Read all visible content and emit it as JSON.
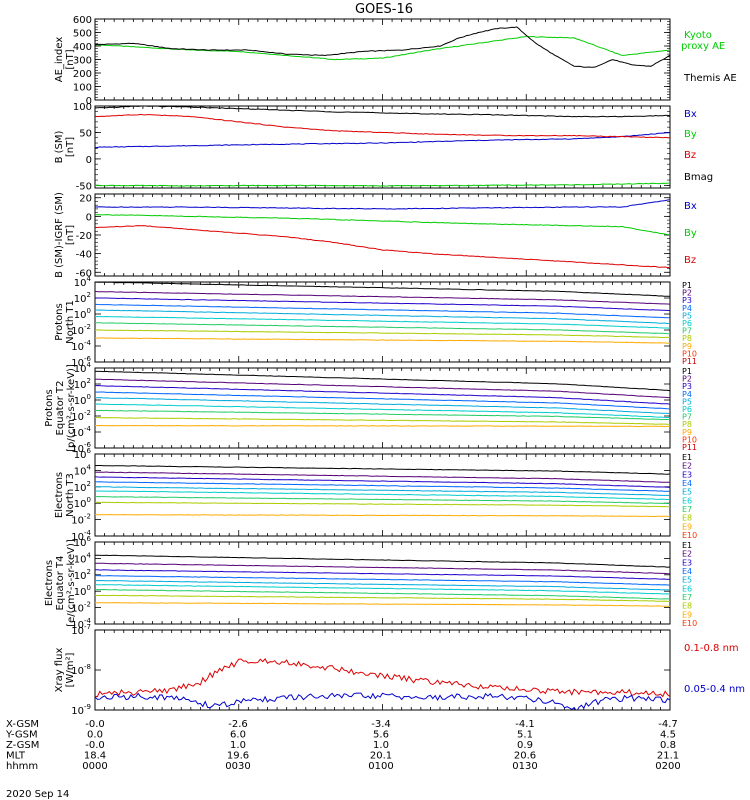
{
  "title": "GOES-16",
  "date": "2020 Sep 14",
  "xaxis": {
    "ticks": [
      "0000",
      "0030",
      "0100",
      "0130",
      "0200"
    ],
    "rows": [
      {
        "label": "X-GSM",
        "values": [
          "-0.0",
          "-2.6",
          "-3.4",
          "-4.1",
          "-4.7"
        ]
      },
      {
        "label": "Y-GSM",
        "values": [
          "0.0",
          "6.0",
          "5.6",
          "5.1",
          "4.5"
        ]
      },
      {
        "label": "Z-GSM",
        "values": [
          "-0.0",
          "1.0",
          "1.0",
          "0.9",
          "0.8"
        ]
      },
      {
        "label": "MLT",
        "values": [
          "18.4",
          "19.6",
          "20.1",
          "20.6",
          "21.1"
        ]
      },
      {
        "label": "hhmm",
        "values": [
          "0000",
          "0030",
          "0100",
          "0130",
          "0200"
        ]
      }
    ]
  },
  "colors": {
    "black": "#000000",
    "green": "#00cc00",
    "red": "#dd0000",
    "blue": "#0000cc",
    "P1": "#000000",
    "P2": "#550077",
    "P3": "#2200cc",
    "P4": "#0066ff",
    "P5": "#00aadd",
    "P6": "#00cccc",
    "P7": "#22cc66",
    "P8": "#aacc00",
    "P9": "#ffaa00",
    "P10": "#ff3300",
    "P11": "#cc0000"
  },
  "chart_data": [
    {
      "type": "line",
      "id": "ae",
      "ylabel": "AE_index [nT]",
      "ylim": [
        0,
        600
      ],
      "log": false,
      "yticks": [
        0,
        100,
        200,
        300,
        400,
        500,
        600
      ],
      "series": [
        {
          "name": "Kyoto proxy AE",
          "color": "#00cc00",
          "x": [
            0,
            10,
            20,
            30,
            40,
            50,
            60,
            70,
            80,
            90,
            100,
            110,
            120
          ],
          "y": [
            410,
            390,
            370,
            360,
            330,
            300,
            310,
            370,
            420,
            470,
            460,
            330,
            370
          ]
        },
        {
          "name": "Themis AE",
          "color": "#000000",
          "x": [
            0,
            8,
            16,
            24,
            32,
            40,
            48,
            56,
            64,
            72,
            76,
            80,
            84,
            88,
            92,
            96,
            100,
            104,
            108,
            112,
            116,
            120
          ],
          "y": [
            410,
            420,
            380,
            370,
            370,
            340,
            330,
            360,
            370,
            400,
            460,
            500,
            530,
            540,
            420,
            330,
            250,
            240,
            300,
            260,
            250,
            330
          ]
        }
      ]
    },
    {
      "type": "line",
      "id": "bsm",
      "ylabel": "B (SM) [nT]",
      "ylim": [
        -55,
        100
      ],
      "log": false,
      "yticks": [
        -50,
        0,
        50,
        100
      ],
      "series": [
        {
          "name": "Bx",
          "color": "#0000cc",
          "x": [
            0,
            20,
            40,
            60,
            80,
            100,
            110,
            120
          ],
          "y": [
            22,
            25,
            28,
            30,
            35,
            38,
            42,
            50
          ]
        },
        {
          "name": "By",
          "color": "#00cc00",
          "x": [
            0,
            20,
            40,
            60,
            80,
            100,
            120
          ],
          "y": [
            -50,
            -51,
            -50,
            -51,
            -50,
            -49,
            -46
          ]
        },
        {
          "name": "Bz",
          "color": "#dd0000",
          "x": [
            0,
            10,
            20,
            30,
            40,
            50,
            60,
            70,
            80,
            90,
            100,
            110,
            120
          ],
          "y": [
            80,
            84,
            80,
            70,
            60,
            53,
            50,
            47,
            45,
            44,
            44,
            42,
            40
          ]
        },
        {
          "name": "Bmag",
          "color": "#000000",
          "x": [
            0,
            10,
            20,
            30,
            40,
            50,
            60,
            70,
            80,
            90,
            100,
            110,
            120
          ],
          "y": [
            96,
            100,
            98,
            95,
            92,
            89,
            87,
            85,
            84,
            82,
            80,
            80,
            82
          ]
        }
      ]
    },
    {
      "type": "line",
      "id": "bigrf",
      "ylabel": "B (SM)-IGRF (SM) [nT]",
      "ylim": [
        -64,
        24
      ],
      "log": false,
      "yticks": [
        -60,
        -40,
        -20,
        0,
        20
      ],
      "series": [
        {
          "name": "Bx",
          "color": "#0000cc",
          "x": [
            0,
            20,
            40,
            60,
            80,
            100,
            110,
            120
          ],
          "y": [
            10,
            10,
            9,
            8,
            9,
            10,
            10,
            18
          ]
        },
        {
          "name": "By",
          "color": "#00cc00",
          "x": [
            0,
            20,
            40,
            60,
            80,
            100,
            110,
            120
          ],
          "y": [
            2,
            0,
            -2,
            -5,
            -8,
            -10,
            -11,
            -20
          ]
        },
        {
          "name": "Bz",
          "color": "#dd0000",
          "x": [
            0,
            10,
            20,
            30,
            40,
            50,
            60,
            70,
            80,
            90,
            100,
            110,
            120
          ],
          "y": [
            -12,
            -10,
            -14,
            -18,
            -22,
            -28,
            -36,
            -40,
            -43,
            -46,
            -49,
            -52,
            -55
          ]
        }
      ]
    },
    {
      "type": "line",
      "id": "pn",
      "ylabel": "Protons North T1",
      "ylim": [
        -6,
        4
      ],
      "log": true,
      "yticks": [
        -6,
        -4,
        -2,
        0,
        2,
        4
      ],
      "channels": [
        "P1",
        "P2",
        "P3",
        "P4",
        "P5",
        "P6",
        "P7",
        "P8",
        "P9",
        "P10",
        "P11"
      ],
      "series": [
        {
          "name": "P1",
          "start": 4,
          "end": 2.3
        },
        {
          "name": "P2",
          "start": 2.8,
          "end": 1.3
        },
        {
          "name": "P3",
          "start": 2.0,
          "end": 0.5
        },
        {
          "name": "P4",
          "start": 1.2,
          "end": -0.4
        },
        {
          "name": "P5",
          "start": 0.5,
          "end": -1.1
        },
        {
          "name": "P6",
          "start": -0.3,
          "end": -1.7
        },
        {
          "name": "P7",
          "start": -1.1,
          "end": -2.4
        },
        {
          "name": "P8",
          "start": -2.0,
          "end": -2.9
        },
        {
          "name": "P9",
          "start": -3.0,
          "end": -3.6
        }
      ]
    },
    {
      "type": "line",
      "id": "pe",
      "ylabel": "Protons Equator T2",
      "unit": "[p/(cm²-s-sr-keV)]",
      "ylim": [
        -6,
        4
      ],
      "log": true,
      "yticks": [
        -6,
        -4,
        -2,
        0,
        2,
        4
      ],
      "channels": [
        "P1",
        "P2",
        "P3",
        "P4",
        "P5",
        "P6",
        "P7",
        "P8",
        "P9",
        "P10",
        "P11"
      ],
      "series": [
        {
          "name": "P1",
          "start": 3.6,
          "end": 1.3
        },
        {
          "name": "P2",
          "start": 2.6,
          "end": 0.4
        },
        {
          "name": "P3",
          "start": 1.8,
          "end": -0.4
        },
        {
          "name": "P4",
          "start": 1.0,
          "end": -1.0
        },
        {
          "name": "P5",
          "start": 0.3,
          "end": -1.6
        },
        {
          "name": "P6",
          "start": -0.5,
          "end": -2.1
        },
        {
          "name": "P7",
          "start": -1.3,
          "end": -2.4
        },
        {
          "name": "P8",
          "start": -2.2,
          "end": -3.0
        },
        {
          "name": "P9",
          "start": -3.2,
          "end": -3.3
        }
      ]
    },
    {
      "type": "line",
      "id": "en",
      "ylabel": "Electrons North T3",
      "ylim": [
        -4,
        6
      ],
      "log": true,
      "yticks": [
        -4,
        -2,
        0,
        2,
        4,
        6
      ],
      "channels": [
        "E1",
        "E2",
        "E3",
        "E4",
        "E5",
        "E6",
        "E7",
        "E8",
        "E9",
        "E10"
      ],
      "series": [
        {
          "name": "E1",
          "start": 4.6,
          "end": 3.6
        },
        {
          "name": "E2",
          "start": 3.8,
          "end": 2.6
        },
        {
          "name": "E3",
          "start": 3.2,
          "end": 2.0
        },
        {
          "name": "E4",
          "start": 2.6,
          "end": 1.5
        },
        {
          "name": "E5",
          "start": 2.0,
          "end": 1.0
        },
        {
          "name": "E6",
          "start": 1.5,
          "end": 0.5
        },
        {
          "name": "E7",
          "start": 0.8,
          "end": 0.0
        },
        {
          "name": "E8",
          "start": 0.1,
          "end": -0.4
        },
        {
          "name": "E9",
          "start": -1.4,
          "end": -1.6
        }
      ]
    },
    {
      "type": "line",
      "id": "ee",
      "ylabel": "Electrons Equator T4",
      "unit": "[e/(cm²-s-sr-keV)]",
      "ylim": [
        -4,
        6
      ],
      "log": true,
      "yticks": [
        -4,
        -2,
        0,
        2,
        4,
        6
      ],
      "channels": [
        "E1",
        "E2",
        "E3",
        "E4",
        "E5",
        "E6",
        "E7",
        "E8",
        "E9",
        "E10"
      ],
      "series": [
        {
          "name": "E1",
          "start": 4.4,
          "end": 3.0
        },
        {
          "name": "E2",
          "start": 3.4,
          "end": 2.2
        },
        {
          "name": "E3",
          "start": 2.6,
          "end": 1.5
        },
        {
          "name": "E4",
          "start": 1.9,
          "end": 0.8
        },
        {
          "name": "E5",
          "start": 1.3,
          "end": 0.2
        },
        {
          "name": "E6",
          "start": 0.8,
          "end": -0.3
        },
        {
          "name": "E7",
          "start": 0.2,
          "end": -0.9
        },
        {
          "name": "E8",
          "start": -0.5,
          "end": -1.2
        },
        {
          "name": "E9",
          "start": -1.4,
          "end": -1.8
        }
      ]
    },
    {
      "type": "line",
      "id": "xray",
      "ylabel": "Xray flux [W/m²]",
      "ylim": [
        -9,
        -7
      ],
      "log": true,
      "yticks": [
        -9,
        -8,
        -7
      ],
      "series": [
        {
          "name": "0.1-0.8 nm",
          "color": "#dd0000",
          "x": [
            0,
            10,
            16,
            22,
            26,
            30,
            34,
            40,
            46,
            52,
            60,
            70,
            80,
            90,
            100,
            110,
            120
          ],
          "y": [
            -8.6,
            -8.55,
            -8.5,
            -8.3,
            -8.0,
            -7.8,
            -7.75,
            -7.8,
            -7.9,
            -8.0,
            -8.15,
            -8.3,
            -8.4,
            -8.5,
            -8.55,
            -8.55,
            -8.6
          ]
        },
        {
          "name": "0.05-0.4 nm",
          "color": "#0000cc",
          "x": [
            0,
            10,
            16,
            20,
            24,
            28,
            32,
            40,
            50,
            60,
            70,
            80,
            90,
            96,
            100,
            106,
            112,
            120
          ],
          "y": [
            -8.7,
            -8.65,
            -8.7,
            -8.75,
            -8.9,
            -8.85,
            -8.75,
            -8.7,
            -8.65,
            -8.65,
            -8.7,
            -8.65,
            -8.7,
            -8.8,
            -9.0,
            -8.75,
            -8.7,
            -8.75
          ]
        }
      ]
    }
  ],
  "legends": {
    "ae": [
      "Kyoto proxy AE",
      "Themis AE"
    ],
    "bsm": [
      "Bx",
      "By",
      "Bz",
      "Bmag"
    ],
    "bigrf": [
      "Bx",
      "By",
      "Bz"
    ],
    "xray": [
      "0.1-0.8 nm",
      "0.05-0.4 nm"
    ]
  },
  "tick_labels": {
    "ae": [
      "0",
      "100",
      "200",
      "300",
      "400",
      "500",
      "600"
    ],
    "bsm": [
      "-50",
      "0",
      "50",
      "100"
    ],
    "bigrf": [
      "-60",
      "-40",
      "-20",
      "0",
      "20"
    ]
  }
}
